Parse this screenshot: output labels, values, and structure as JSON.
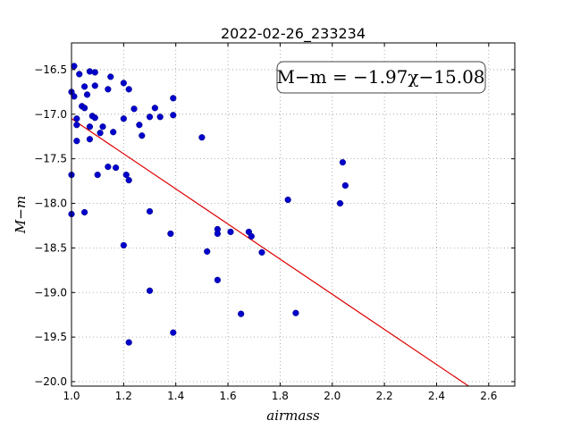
{
  "chart_data": {
    "type": "scatter",
    "title": "2022-02-26_233234",
    "xlabel": "airmass",
    "ylabel": "M−m",
    "xlim": [
      1.0,
      2.7
    ],
    "ylim": [
      -16.2,
      -20.05
    ],
    "y_inverted": true,
    "grid": true,
    "x_ticks": [
      "1.0",
      "1.2",
      "1.4",
      "1.6",
      "1.8",
      "2.0",
      "2.2",
      "2.4",
      "2.6"
    ],
    "x_tick_values": [
      1.0,
      1.2,
      1.4,
      1.6,
      1.8,
      2.0,
      2.2,
      2.4,
      2.6
    ],
    "y_ticks": [
      "−16.5",
      "−17.0",
      "−17.5",
      "−18.0",
      "−18.5",
      "−19.0",
      "−19.5",
      "−20.0"
    ],
    "y_tick_values": [
      -16.5,
      -17.0,
      -17.5,
      -18.0,
      -18.5,
      -19.0,
      -19.5,
      -20.0
    ],
    "fit_label": "M−m = −1.97χ−15.08",
    "fit": {
      "slope": -1.97,
      "intercept": -15.08
    },
    "legend_position": "top-right",
    "colors": {
      "points": "#0000cc",
      "fit_line": "#dd0000",
      "grid": "#9a9a9a"
    },
    "points": [
      [
        1.01,
        -16.46
      ],
      [
        1.03,
        -16.55
      ],
      [
        1.07,
        -16.52
      ],
      [
        1.09,
        -16.53
      ],
      [
        1.15,
        -16.58
      ],
      [
        1.0,
        -16.75
      ],
      [
        1.01,
        -16.8
      ],
      [
        1.05,
        -16.69
      ],
      [
        1.06,
        -16.78
      ],
      [
        1.09,
        -16.68
      ],
      [
        1.14,
        -16.72
      ],
      [
        1.2,
        -16.65
      ],
      [
        1.22,
        -16.72
      ],
      [
        1.39,
        -16.82
      ],
      [
        1.04,
        -16.91
      ],
      [
        1.05,
        -16.93
      ],
      [
        1.08,
        -17.02
      ],
      [
        1.09,
        -17.04
      ],
      [
        1.02,
        -17.05
      ],
      [
        1.02,
        -17.12
      ],
      [
        1.07,
        -17.14
      ],
      [
        1.12,
        -17.14
      ],
      [
        1.11,
        -17.21
      ],
      [
        1.16,
        -17.2
      ],
      [
        1.2,
        -17.05
      ],
      [
        1.24,
        -16.94
      ],
      [
        1.3,
        -17.03
      ],
      [
        1.32,
        -16.93
      ],
      [
        1.34,
        -17.03
      ],
      [
        1.39,
        -17.01
      ],
      [
        1.26,
        -17.12
      ],
      [
        1.27,
        -17.24
      ],
      [
        1.02,
        -17.3
      ],
      [
        1.07,
        -17.28
      ],
      [
        1.5,
        -17.26
      ],
      [
        1.14,
        -17.59
      ],
      [
        1.17,
        -17.6
      ],
      [
        1.1,
        -17.68
      ],
      [
        1.21,
        -17.68
      ],
      [
        1.22,
        -17.74
      ],
      [
        1.0,
        -17.68
      ],
      [
        1.0,
        -18.12
      ],
      [
        1.05,
        -18.1
      ],
      [
        2.04,
        -17.54
      ],
      [
        2.05,
        -17.8
      ],
      [
        2.03,
        -18.0
      ],
      [
        1.83,
        -17.96
      ],
      [
        1.3,
        -18.09
      ],
      [
        1.38,
        -18.34
      ],
      [
        1.56,
        -18.29
      ],
      [
        1.56,
        -18.34
      ],
      [
        1.61,
        -18.32
      ],
      [
        1.68,
        -18.32
      ],
      [
        1.69,
        -18.37
      ],
      [
        1.73,
        -18.55
      ],
      [
        1.52,
        -18.54
      ],
      [
        1.2,
        -18.47
      ],
      [
        1.3,
        -18.98
      ],
      [
        1.56,
        -18.86
      ],
      [
        1.65,
        -19.24
      ],
      [
        1.86,
        -19.23
      ],
      [
        1.39,
        -19.45
      ],
      [
        1.22,
        -19.56
      ]
    ]
  }
}
